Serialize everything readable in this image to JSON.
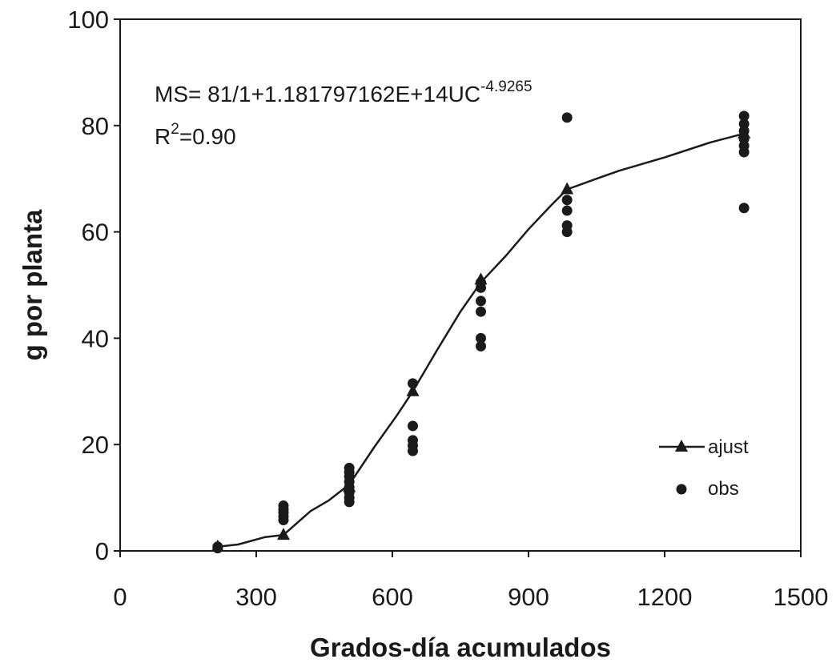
{
  "chart_data": {
    "type": "scatter",
    "title": "",
    "xlabel": "Grados-día acumulados",
    "ylabel": "g por planta",
    "xlim": [
      0,
      1500
    ],
    "ylim": [
      0,
      100
    ],
    "xticks": [
      0,
      300,
      600,
      900,
      1200,
      1500
    ],
    "yticks": [
      0,
      20,
      40,
      60,
      80,
      100
    ],
    "grid": false,
    "legend": "lower-right",
    "annotation": {
      "equation_main": "MS= 81/1+1.181797162E+14UC",
      "equation_exp": "-4.9265",
      "r2_prefix": "R",
      "r2_sup": "2",
      "r2_value": "=0.90"
    },
    "series": [
      {
        "name": "ajust",
        "kind": "line",
        "markers_x": [
          215,
          360,
          505,
          645,
          795,
          985,
          1375
        ],
        "markers_y": [
          0.8,
          3,
          12,
          30,
          51,
          68,
          78.5
        ],
        "curve": [
          [
            215,
            0.8
          ],
          [
            260,
            1.2
          ],
          [
            320,
            2.6
          ],
          [
            360,
            3
          ],
          [
            420,
            7.5
          ],
          [
            460,
            9.5
          ],
          [
            505,
            12.5
          ],
          [
            560,
            19.5
          ],
          [
            610,
            25.5
          ],
          [
            645,
            30
          ],
          [
            700,
            38
          ],
          [
            750,
            45
          ],
          [
            795,
            50.5
          ],
          [
            850,
            55.5
          ],
          [
            900,
            60.5
          ],
          [
            950,
            65
          ],
          [
            985,
            68
          ],
          [
            1050,
            70
          ],
          [
            1100,
            71.5
          ],
          [
            1200,
            74
          ],
          [
            1300,
            76.8
          ],
          [
            1375,
            78.5
          ]
        ]
      },
      {
        "name": "obs",
        "kind": "scatter",
        "points": [
          [
            215,
            0.5
          ],
          [
            215,
            0.8
          ],
          [
            360,
            5.8
          ],
          [
            360,
            6.5
          ],
          [
            360,
            7.2
          ],
          [
            360,
            7.8
          ],
          [
            360,
            8.5
          ],
          [
            505,
            9.2
          ],
          [
            505,
            10
          ],
          [
            505,
            11
          ],
          [
            505,
            12
          ],
          [
            505,
            13
          ],
          [
            505,
            14
          ],
          [
            505,
            14.8
          ],
          [
            505,
            15.6
          ],
          [
            645,
            18.8
          ],
          [
            645,
            19.8
          ],
          [
            645,
            20.8
          ],
          [
            645,
            23.5
          ],
          [
            645,
            31.5
          ],
          [
            795,
            38.5
          ],
          [
            795,
            40
          ],
          [
            795,
            45
          ],
          [
            795,
            47
          ],
          [
            795,
            49.5
          ],
          [
            795,
            50.5
          ],
          [
            985,
            60
          ],
          [
            985,
            61.2
          ],
          [
            985,
            64
          ],
          [
            985,
            66
          ],
          [
            985,
            81.5
          ],
          [
            1375,
            64.5
          ],
          [
            1375,
            75
          ],
          [
            1375,
            76.2
          ],
          [
            1375,
            77.5
          ],
          [
            1375,
            79
          ],
          [
            1375,
            80.3
          ],
          [
            1375,
            81.8
          ]
        ]
      }
    ],
    "colors": {
      "ink": "#1a1a1a",
      "background": "#ffffff"
    }
  }
}
